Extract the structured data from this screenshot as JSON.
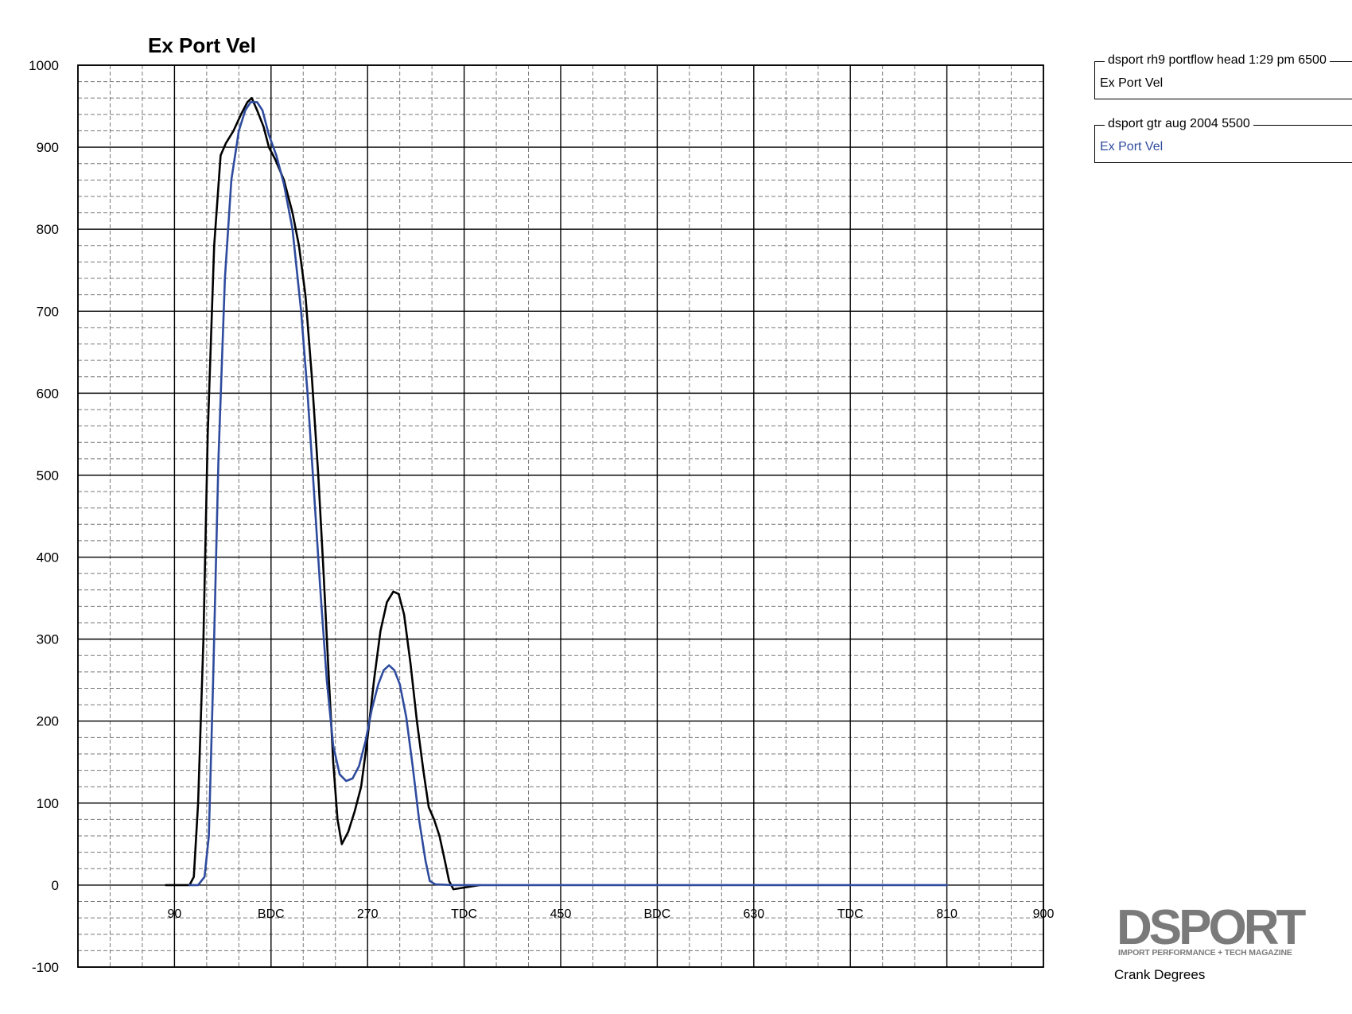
{
  "chart_data": {
    "type": "line",
    "title": "Ex Port Vel",
    "xlabel": "Crank Degrees",
    "ylabel": "",
    "xlim": [
      0,
      900
    ],
    "ylim": [
      -100,
      1000
    ],
    "x_ticks": [
      {
        "value": 90,
        "label": "90"
      },
      {
        "value": 180,
        "label": "BDC"
      },
      {
        "value": 270,
        "label": "270"
      },
      {
        "value": 360,
        "label": "TDC"
      },
      {
        "value": 450,
        "label": "450"
      },
      {
        "value": 540,
        "label": "BDC"
      },
      {
        "value": 630,
        "label": "630"
      },
      {
        "value": 720,
        "label": "TDC"
      },
      {
        "value": 810,
        "label": "810"
      },
      {
        "value": 900,
        "label": "900"
      }
    ],
    "y_ticks": [
      -100,
      0,
      100,
      200,
      300,
      400,
      500,
      600,
      700,
      800,
      900,
      1000
    ],
    "grid": true,
    "legend_position": "top-right",
    "series": [
      {
        "name": "dsport rh9 portflow head 1:29 pm  6500",
        "label": "Ex Port Vel",
        "color": "#000000",
        "points": [
          [
            82,
            0
          ],
          [
            104,
            0
          ],
          [
            108,
            10
          ],
          [
            112,
            100
          ],
          [
            117,
            300
          ],
          [
            121,
            550
          ],
          [
            127,
            780
          ],
          [
            133,
            890
          ],
          [
            138,
            905
          ],
          [
            145,
            920
          ],
          [
            152,
            940
          ],
          [
            158,
            955
          ],
          [
            162,
            960
          ],
          [
            167,
            945
          ],
          [
            173,
            925
          ],
          [
            178,
            900
          ],
          [
            184,
            885
          ],
          [
            192,
            860
          ],
          [
            200,
            820
          ],
          [
            206,
            780
          ],
          [
            212,
            720
          ],
          [
            218,
            620
          ],
          [
            224,
            500
          ],
          [
            229,
            380
          ],
          [
            234,
            250
          ],
          [
            238,
            150
          ],
          [
            242,
            80
          ],
          [
            246,
            50
          ],
          [
            252,
            65
          ],
          [
            258,
            90
          ],
          [
            264,
            120
          ],
          [
            270,
            180
          ],
          [
            276,
            250
          ],
          [
            282,
            310
          ],
          [
            288,
            345
          ],
          [
            294,
            358
          ],
          [
            299,
            355
          ],
          [
            304,
            330
          ],
          [
            310,
            270
          ],
          [
            316,
            200
          ],
          [
            322,
            140
          ],
          [
            327,
            95
          ],
          [
            332,
            80
          ],
          [
            337,
            60
          ],
          [
            342,
            30
          ],
          [
            346,
            5
          ],
          [
            350,
            -5
          ],
          [
            365,
            -2
          ],
          [
            375,
            0
          ]
        ]
      },
      {
        "name": "dsport gtr aug 2004 5500",
        "label": "Ex Port Vel",
        "color": "#2e4b9e",
        "points": [
          [
            104,
            0
          ],
          [
            112,
            0
          ],
          [
            118,
            10
          ],
          [
            122,
            60
          ],
          [
            126,
            250
          ],
          [
            131,
            520
          ],
          [
            137,
            740
          ],
          [
            143,
            860
          ],
          [
            150,
            920
          ],
          [
            156,
            945
          ],
          [
            161,
            955
          ],
          [
            167,
            955
          ],
          [
            172,
            945
          ],
          [
            178,
            915
          ],
          [
            185,
            890
          ],
          [
            192,
            855
          ],
          [
            200,
            800
          ],
          [
            208,
            700
          ],
          [
            214,
            600
          ],
          [
            220,
            480
          ],
          [
            226,
            360
          ],
          [
            232,
            250
          ],
          [
            238,
            170
          ],
          [
            244,
            135
          ],
          [
            250,
            127
          ],
          [
            256,
            130
          ],
          [
            262,
            145
          ],
          [
            268,
            175
          ],
          [
            274,
            215
          ],
          [
            280,
            245
          ],
          [
            285,
            262
          ],
          [
            290,
            268
          ],
          [
            295,
            262
          ],
          [
            300,
            245
          ],
          [
            306,
            205
          ],
          [
            312,
            145
          ],
          [
            318,
            80
          ],
          [
            324,
            30
          ],
          [
            328,
            5
          ],
          [
            333,
            1
          ],
          [
            350,
            0
          ],
          [
            720,
            0
          ],
          [
            810,
            0
          ]
        ]
      }
    ]
  },
  "legend": [
    {
      "title": "dsport rh9 portflow head 1:29 pm  6500",
      "label": "Ex Port Vel",
      "color": "#000000"
    },
    {
      "title": "dsport gtr aug 2004 5500",
      "label": "Ex Port Vel",
      "color": "#2e4b9e"
    }
  ],
  "logo": {
    "word": "DSPORT",
    "tagline": "IMPORT PERFORMANCE + TECH MAGAZINE"
  }
}
